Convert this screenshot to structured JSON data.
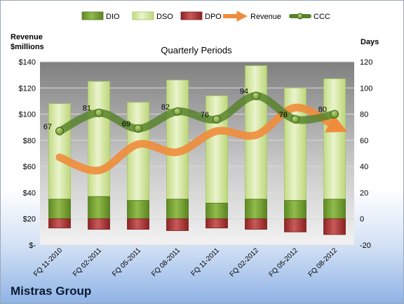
{
  "company": "Mistras Group",
  "chart_data": {
    "type": "bar",
    "title": "Quarterly Periods",
    "left_axis_label": [
      "Revenue",
      "$millions"
    ],
    "right_axis_label": "Days",
    "categories": [
      "FQ 11-2010",
      "FQ 02-2011",
      "FQ 05-2011",
      "FQ 08-2011",
      "FQ 11-2011",
      "FQ 02-2012",
      "FQ 05-2012",
      "FQ 08-2012"
    ],
    "left_axis": {
      "min": 0,
      "max": 140,
      "step": 20,
      "ticks": [
        "$-",
        "$20",
        "$40",
        "$60",
        "$80",
        "$100",
        "$120",
        "$140"
      ]
    },
    "right_axis": {
      "min": -20,
      "max": 120,
      "step": 20,
      "ticks": [
        "-20",
        "0",
        "20",
        "40",
        "60",
        "80",
        "100",
        "120"
      ]
    },
    "grid": true,
    "legend_position": "top",
    "series": [
      {
        "name": "DIO",
        "type": "bar",
        "axis": "right",
        "color": "#7aa33a",
        "values": [
          15,
          17,
          14,
          15,
          12,
          15,
          14,
          15
        ]
      },
      {
        "name": "DSO",
        "type": "bar",
        "axis": "right",
        "color": "#d6e8a6",
        "values": [
          73,
          88,
          75,
          91,
          82,
          102,
          86,
          92
        ]
      },
      {
        "name": "DPO",
        "type": "bar",
        "axis": "right",
        "color": "#b13a3a",
        "values": [
          -7,
          -8,
          -8,
          -9,
          -7,
          -8,
          -10,
          -12
        ]
      },
      {
        "name": "Revenue",
        "type": "line",
        "axis": "left",
        "color": "#ef8c3b",
        "values": [
          67,
          57,
          77,
          71,
          87,
          84,
          105,
          91
        ]
      },
      {
        "name": "CCC",
        "type": "line",
        "axis": "right",
        "color": "#56812a",
        "values": [
          67,
          81,
          69,
          82,
          76,
          94,
          76,
          80
        ],
        "labels": [
          "67",
          "81",
          "69",
          "82",
          "76",
          "94",
          "76",
          "80"
        ]
      }
    ]
  }
}
